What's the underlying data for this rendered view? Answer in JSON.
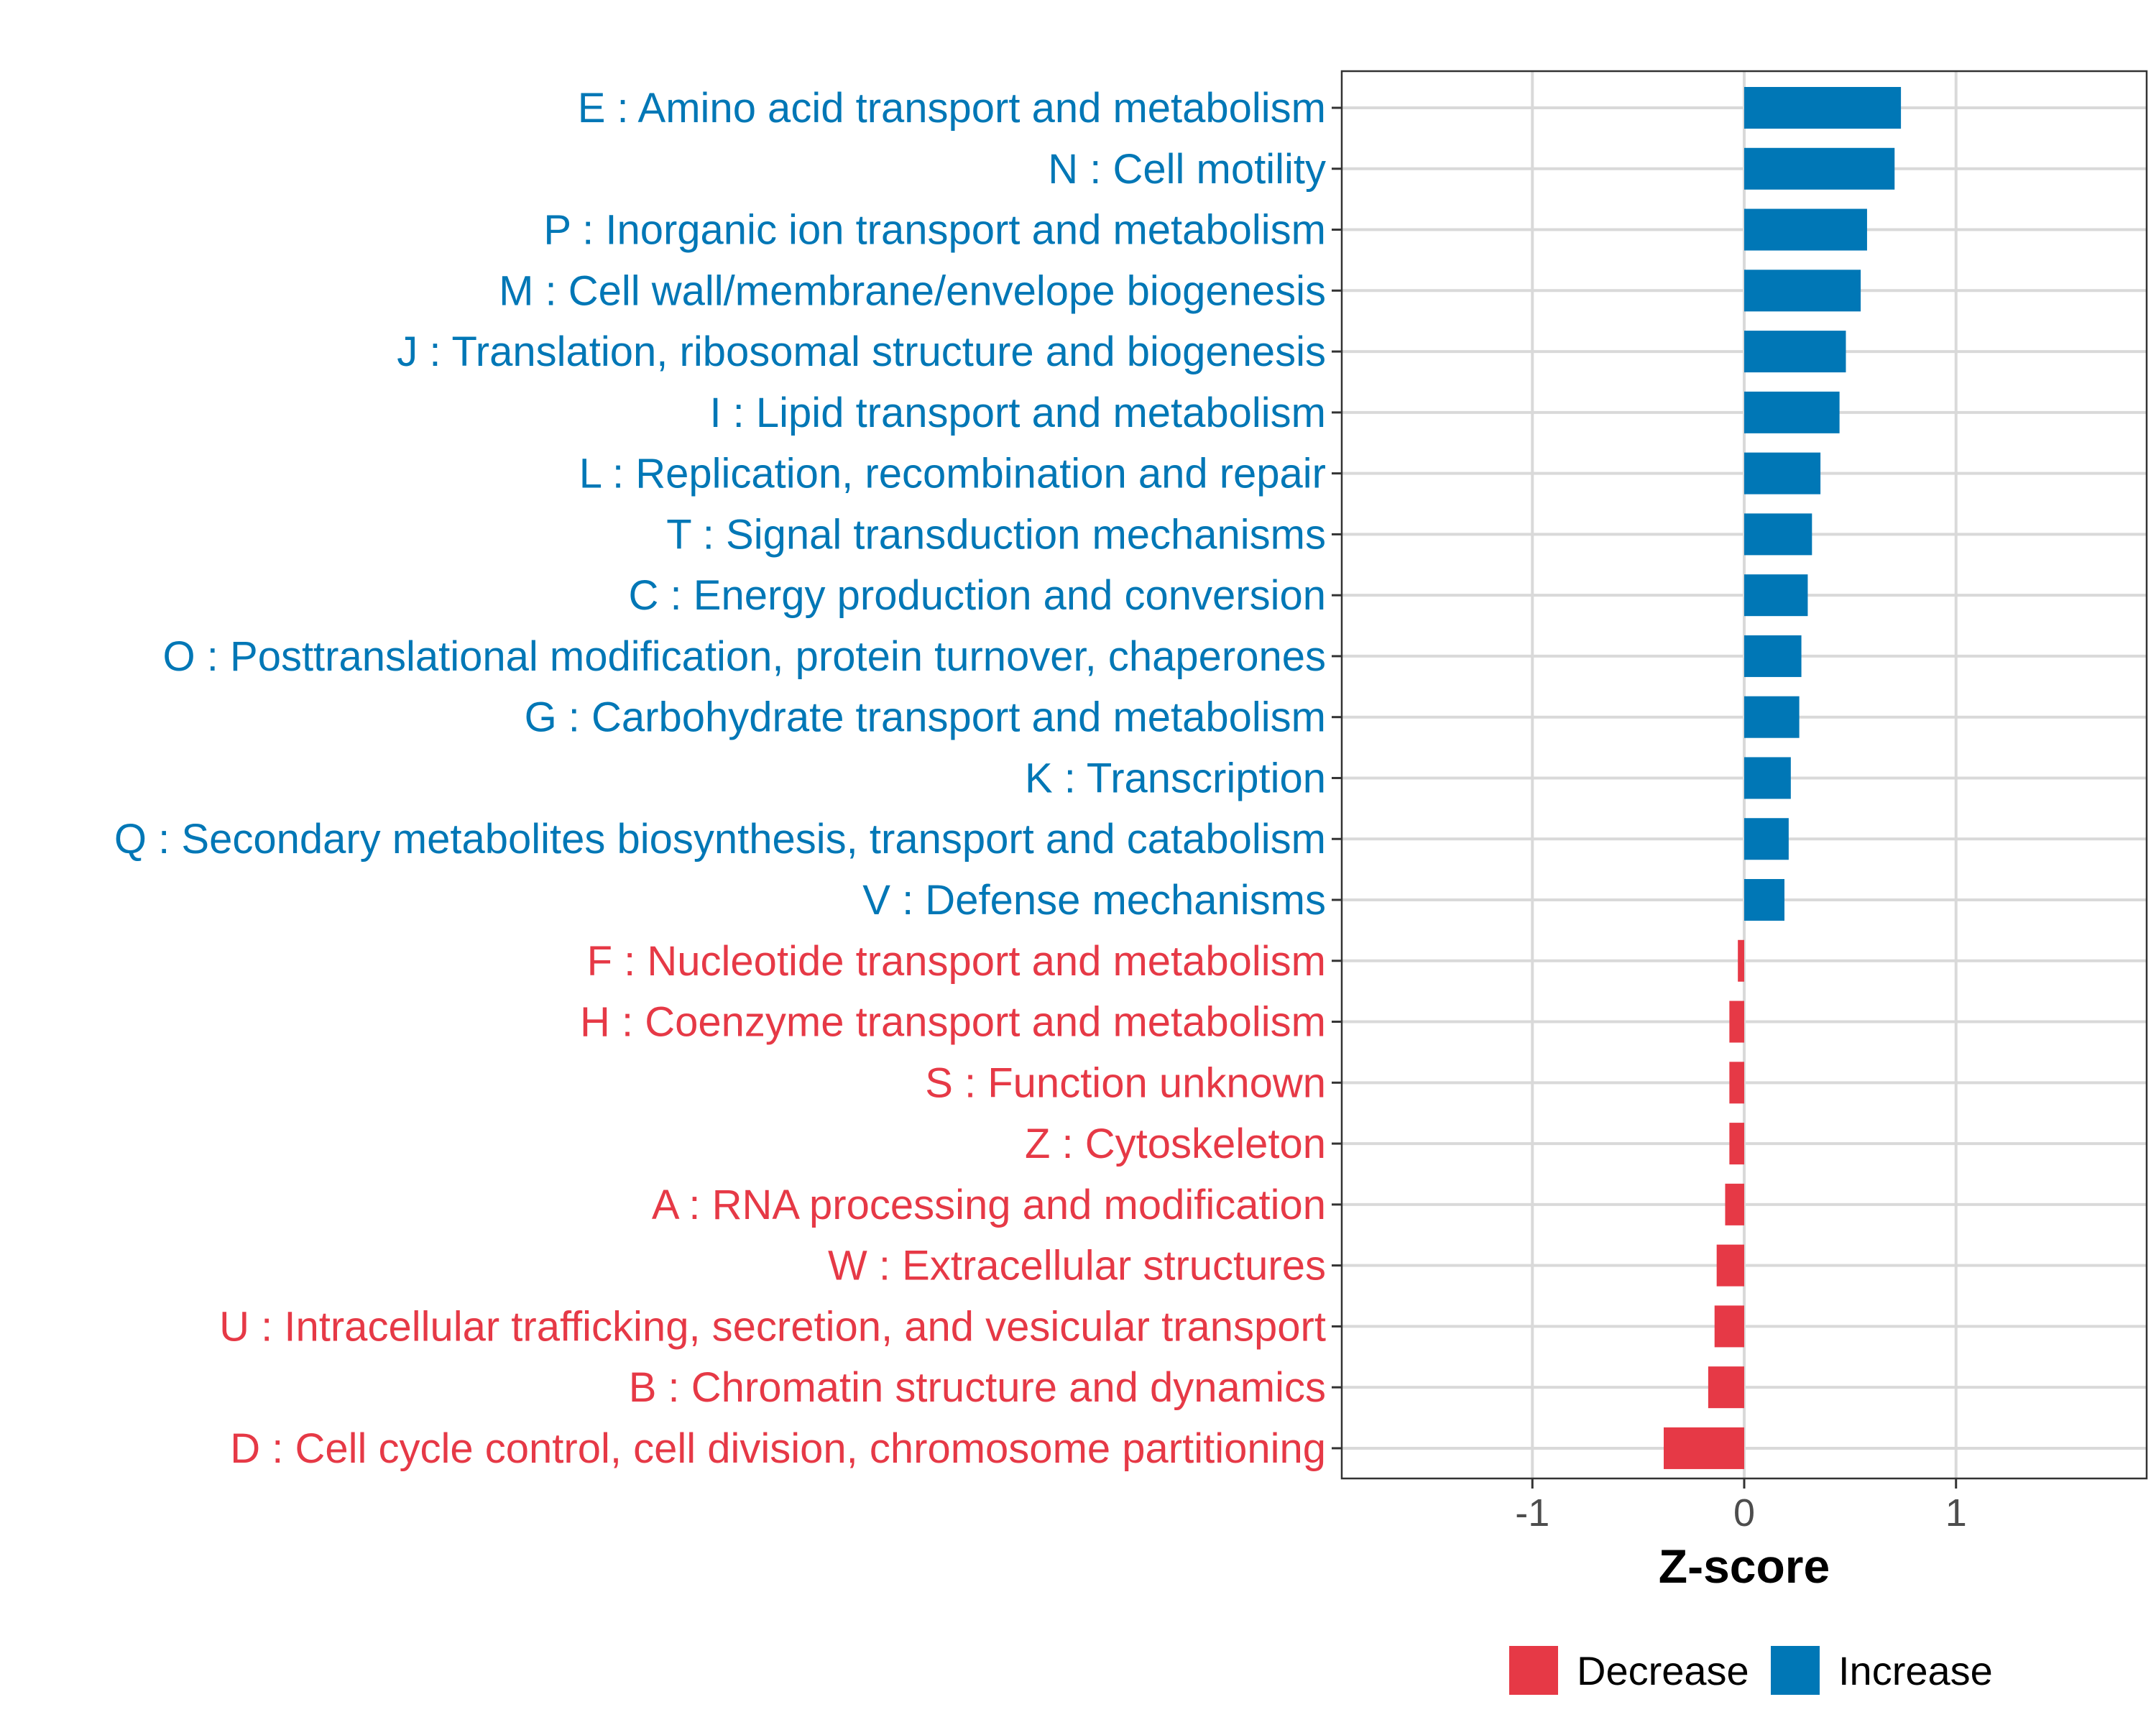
{
  "colors": {
    "increase": "#0077B6",
    "decrease": "#E63946"
  },
  "chart_data": {
    "type": "bar",
    "orientation": "horizontal",
    "title": "",
    "xlabel": "Z-score",
    "ylabel": "",
    "xlim": [
      -1.9,
      1.9
    ],
    "xticks": [
      -1,
      0,
      1
    ],
    "xtick_labels": [
      "-1",
      "0",
      "1"
    ],
    "grid": true,
    "legend_position": "bottom",
    "legend": [
      {
        "name": "Decrease",
        "color": "#E63946"
      },
      {
        "name": "Increase",
        "color": "#0077B6"
      }
    ],
    "categories": [
      "E : Amino acid transport and metabolism",
      "N : Cell motility",
      "P : Inorganic ion transport and metabolism",
      "M : Cell wall/membrane/envelope biogenesis",
      "J : Translation, ribosomal structure and biogenesis",
      "I : Lipid transport and metabolism",
      "L : Replication, recombination and repair",
      "T : Signal transduction mechanisms",
      "C : Energy production and conversion",
      "O : Posttranslational modification, protein turnover, chaperones",
      "G : Carbohydrate transport and metabolism",
      "K : Transcription",
      "Q : Secondary metabolites biosynthesis, transport and catabolism",
      "V : Defense mechanisms",
      "F : Nucleotide transport and metabolism",
      "H : Coenzyme transport and metabolism",
      "S : Function unknown",
      "Z : Cytoskeleton",
      "A : RNA processing and modification",
      "W : Extracellular structures",
      "U : Intracellular trafficking, secretion, and vesicular transport",
      "B : Chromatin structure and dynamics",
      "D : Cell cycle control, cell division, chromosome partitioning"
    ],
    "values": [
      0.74,
      0.71,
      0.58,
      0.55,
      0.48,
      0.45,
      0.36,
      0.32,
      0.3,
      0.27,
      0.26,
      0.22,
      0.21,
      0.19,
      -0.03,
      -0.07,
      -0.07,
      -0.07,
      -0.09,
      -0.13,
      -0.14,
      -0.17,
      -0.38
    ],
    "direction": [
      "Increase",
      "Increase",
      "Increase",
      "Increase",
      "Increase",
      "Increase",
      "Increase",
      "Increase",
      "Increase",
      "Increase",
      "Increase",
      "Increase",
      "Increase",
      "Increase",
      "Decrease",
      "Decrease",
      "Decrease",
      "Decrease",
      "Decrease",
      "Decrease",
      "Decrease",
      "Decrease",
      "Decrease"
    ]
  }
}
